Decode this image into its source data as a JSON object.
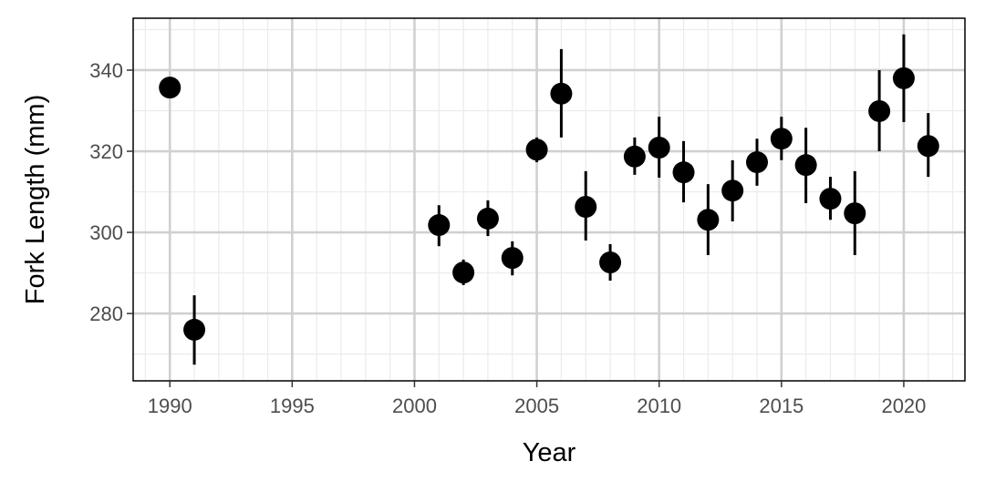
{
  "chart_data": {
    "type": "scatter",
    "title": "",
    "xlabel": "Year",
    "ylabel": "Fork Length (mm)",
    "xlim": [
      1988.5,
      2022.5
    ],
    "ylim": [
      263.4,
      352.8
    ],
    "xticks": [
      1990,
      1995,
      2000,
      2005,
      2010,
      2015,
      2020
    ],
    "yticks": [
      280,
      300,
      320,
      340
    ],
    "xtick_labels": [
      "1990",
      "1995",
      "2000",
      "2005",
      "2010",
      "2015",
      "2020"
    ],
    "ytick_labels": [
      "280",
      "300",
      "320",
      "340"
    ],
    "grid": true,
    "error_bars": true,
    "point_color": "#000000",
    "grid_color": "#d0d0d0",
    "points": [
      {
        "x": 1990,
        "y": 335.7,
        "lo": 335.7,
        "hi": 335.7
      },
      {
        "x": 1991,
        "y": 276.0,
        "lo": 267.4,
        "hi": 284.5
      },
      {
        "x": 2001,
        "y": 301.8,
        "lo": 296.6,
        "hi": 306.7
      },
      {
        "x": 2002,
        "y": 290.1,
        "lo": 287.0,
        "hi": 293.3
      },
      {
        "x": 2003,
        "y": 303.4,
        "lo": 299.1,
        "hi": 307.9
      },
      {
        "x": 2004,
        "y": 293.7,
        "lo": 289.4,
        "hi": 297.8
      },
      {
        "x": 2005,
        "y": 320.4,
        "lo": 317.3,
        "hi": 323.4
      },
      {
        "x": 2006,
        "y": 334.2,
        "lo": 323.4,
        "hi": 345.2
      },
      {
        "x": 2007,
        "y": 306.3,
        "lo": 298.0,
        "hi": 315.1
      },
      {
        "x": 2008,
        "y": 292.6,
        "lo": 288.1,
        "hi": 297.1
      },
      {
        "x": 2009,
        "y": 318.7,
        "lo": 314.2,
        "hi": 323.4
      },
      {
        "x": 2010,
        "y": 320.9,
        "lo": 313.5,
        "hi": 328.5
      },
      {
        "x": 2011,
        "y": 314.8,
        "lo": 307.4,
        "hi": 322.5
      },
      {
        "x": 2012,
        "y": 303.1,
        "lo": 294.4,
        "hi": 311.9
      },
      {
        "x": 2013,
        "y": 310.3,
        "lo": 302.7,
        "hi": 317.8
      },
      {
        "x": 2014,
        "y": 317.3,
        "lo": 311.5,
        "hi": 323.1
      },
      {
        "x": 2015,
        "y": 323.1,
        "lo": 317.8,
        "hi": 328.5
      },
      {
        "x": 2016,
        "y": 316.6,
        "lo": 307.2,
        "hi": 325.8
      },
      {
        "x": 2017,
        "y": 308.3,
        "lo": 303.1,
        "hi": 313.7
      },
      {
        "x": 2018,
        "y": 304.7,
        "lo": 294.4,
        "hi": 315.1
      },
      {
        "x": 2019,
        "y": 329.9,
        "lo": 320.0,
        "hi": 340.0
      },
      {
        "x": 2020,
        "y": 338.0,
        "lo": 327.2,
        "hi": 348.8
      },
      {
        "x": 2021,
        "y": 321.3,
        "lo": 313.7,
        "hi": 329.4
      }
    ]
  }
}
